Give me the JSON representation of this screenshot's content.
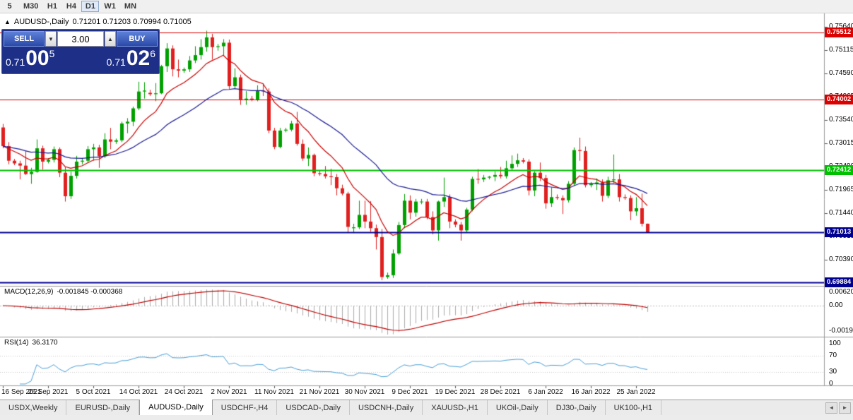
{
  "toolbar": {
    "timeframes": [
      "5",
      "M30",
      "H1",
      "H4",
      "D1",
      "W1",
      "MN"
    ],
    "active": "D1"
  },
  "chart_header": {
    "collapse_icon": "▲",
    "symbol_title": "AUDUSD-,Daily",
    "ohlc_text": "0.71201 0.71203 0.70994 0.71005"
  },
  "one_click": {
    "sell_label": "SELL",
    "buy_label": "BUY",
    "volume": "3.00",
    "volume_down_icon": "▼",
    "volume_up_icon": "▲",
    "bid": {
      "prefix": "0.71",
      "big": "00",
      "sup": "5"
    },
    "ask": {
      "prefix": "0.71",
      "big": "02",
      "sup": "6"
    }
  },
  "indicators": {
    "macd_label": "MACD(12,26,9)",
    "macd_values": "-0.001845 -0.000368",
    "macd_axis": [
      "0.006201",
      "0.00",
      "-0.001917"
    ],
    "rsi_label": "RSI(14)",
    "rsi_value": "36.3170",
    "rsi_axis": [
      "100",
      "70",
      "30",
      "0"
    ]
  },
  "tabs": {
    "items": [
      "USDX,Weekly",
      "EURUSD-,Daily",
      "AUDUSD-,Daily",
      "USDCHF-,H4",
      "USDCAD-,Daily",
      "USDCNH-,Daily",
      "XAUUSD-,H1",
      "UKOil-,Daily",
      "DJ30-,Daily",
      "UK100-,H1"
    ],
    "active_index": 2,
    "scroll_left_icon": "◄",
    "scroll_right_icon": "►"
  },
  "chart_data": {
    "type": "candlestick",
    "symbol": "AUDUSD-,Daily",
    "ohlc_current": {
      "open": 0.71201,
      "high": 0.71203,
      "low": 0.70994,
      "close": 0.71005
    },
    "colors": {
      "bull": "#00a000",
      "bear": "#e01f1f",
      "background": "#ffffff"
    },
    "price_axis": {
      "price_at_top": 0.7594,
      "price_per_pixel": 0.000159068,
      "ticks": [
        "0.75640",
        "0.75115",
        "0.74590",
        "0.74065",
        "0.73540",
        "0.73015",
        "0.72490",
        "0.71965",
        "0.71440",
        "0.70915",
        "0.70390",
        "0.69865"
      ]
    },
    "hlines": [
      {
        "label": "0.75512",
        "price": 0.75512,
        "color": "#dd0000",
        "width": 1
      },
      {
        "label": "0.74002",
        "price": 0.74002,
        "color": "#dd0000",
        "width": 1
      },
      {
        "label": "0.72412",
        "price": 0.72412,
        "color": "#00c000",
        "width": 2
      },
      {
        "label": "0.71013",
        "price": 0.71013,
        "color": "#000090",
        "width": 2
      },
      {
        "label": "0.69884",
        "price": 0.69884,
        "color": "#000090",
        "width": 2
      }
    ],
    "overlays": [
      {
        "name": "ma-fast",
        "period": 10,
        "color": "#cc0000"
      },
      {
        "name": "ma-slow",
        "period": 30,
        "color": "#1a1a96"
      }
    ],
    "macd": {
      "fast": 12,
      "slow": 26,
      "signal": 9,
      "bar_color": "#ababab",
      "signal_color": "#c00000"
    },
    "rsi": {
      "period": 14,
      "color": "#4aa0d8",
      "levels": [
        70,
        30
      ]
    },
    "date_labels": [
      {
        "i": 0,
        "t": "16 Sep 2021"
      },
      {
        "i": 8,
        "t": "26 Sep 2021"
      },
      {
        "i": 16,
        "t": "5 Oct 2021"
      },
      {
        "i": 24,
        "t": "14 Oct 2021"
      },
      {
        "i": 32,
        "t": "24 Oct 2021"
      },
      {
        "i": 40,
        "t": "2 Nov 2021"
      },
      {
        "i": 48,
        "t": "11 Nov 2021"
      },
      {
        "i": 56,
        "t": "21 Nov 2021"
      },
      {
        "i": 64,
        "t": "30 Nov 2021"
      },
      {
        "i": 72,
        "t": "9 Dec 2021"
      },
      {
        "i": 80,
        "t": "19 Dec 2021"
      },
      {
        "i": 88,
        "t": "28 Dec 2021"
      },
      {
        "i": 96,
        "t": "6 Jan 2022"
      },
      {
        "i": 104,
        "t": "16 Jan 2022"
      },
      {
        "i": 112,
        "t": "25 Jan 2022"
      }
    ],
    "candles": [
      [
        0.7337,
        0.7345,
        0.729,
        0.7295
      ],
      [
        0.7295,
        0.7304,
        0.7254,
        0.7262
      ],
      [
        0.7262,
        0.7266,
        0.7252,
        0.7256
      ],
      [
        0.7256,
        0.7262,
        0.722,
        0.7251
      ],
      [
        0.7251,
        0.7284,
        0.723,
        0.7232
      ],
      [
        0.7232,
        0.7246,
        0.721,
        0.7237
      ],
      [
        0.7237,
        0.731,
        0.7235,
        0.729
      ],
      [
        0.729,
        0.7296,
        0.7242,
        0.726
      ],
      [
        0.726,
        0.7268,
        0.7256,
        0.7264
      ],
      [
        0.7264,
        0.7294,
        0.7258,
        0.7288
      ],
      [
        0.7288,
        0.7292,
        0.7225,
        0.7235
      ],
      [
        0.7235,
        0.7248,
        0.717,
        0.7182
      ],
      [
        0.7182,
        0.7238,
        0.7176,
        0.7228
      ],
      [
        0.7228,
        0.7273,
        0.7222,
        0.726
      ],
      [
        0.726,
        0.7268,
        0.7254,
        0.7262
      ],
      [
        0.7262,
        0.7295,
        0.7258,
        0.7288
      ],
      [
        0.7288,
        0.73,
        0.7262,
        0.7292
      ],
      [
        0.7292,
        0.7298,
        0.7246,
        0.7272
      ],
      [
        0.7272,
        0.7324,
        0.7268,
        0.731
      ],
      [
        0.731,
        0.7336,
        0.7288,
        0.7305
      ],
      [
        0.7305,
        0.7312,
        0.73,
        0.7308
      ],
      [
        0.7308,
        0.735,
        0.7304,
        0.7346
      ],
      [
        0.7346,
        0.7358,
        0.7324,
        0.735
      ],
      [
        0.735,
        0.7384,
        0.734,
        0.738
      ],
      [
        0.738,
        0.744,
        0.7376,
        0.7418
      ],
      [
        0.7418,
        0.7439,
        0.7402,
        0.742
      ],
      [
        0.7415,
        0.7422,
        0.7408,
        0.7412
      ],
      [
        0.7412,
        0.7437,
        0.7396,
        0.7414
      ],
      [
        0.7414,
        0.7478,
        0.7412,
        0.7475
      ],
      [
        0.7475,
        0.7527,
        0.7462,
        0.7515
      ],
      [
        0.7515,
        0.7522,
        0.7452,
        0.7468
      ],
      [
        0.7468,
        0.749,
        0.745,
        0.7465
      ],
      [
        0.7465,
        0.7472,
        0.746,
        0.7468
      ],
      [
        0.7468,
        0.7498,
        0.7462,
        0.7488
      ],
      [
        0.7488,
        0.752,
        0.7482,
        0.75
      ],
      [
        0.75,
        0.7536,
        0.749,
        0.7518
      ],
      [
        0.7518,
        0.7555,
        0.7508,
        0.754
      ],
      [
        0.754,
        0.7548,
        0.749,
        0.7518
      ],
      [
        0.7518,
        0.7525,
        0.751,
        0.752
      ],
      [
        0.752,
        0.7536,
        0.75,
        0.7528
      ],
      [
        0.7528,
        0.7535,
        0.7424,
        0.743
      ],
      [
        0.743,
        0.747,
        0.7425,
        0.745
      ],
      [
        0.745,
        0.7456,
        0.7388,
        0.74
      ],
      [
        0.74,
        0.7419,
        0.7388,
        0.7402
      ],
      [
        0.7402,
        0.7408,
        0.7396,
        0.74
      ],
      [
        0.74,
        0.7432,
        0.7396,
        0.742
      ],
      [
        0.742,
        0.7436,
        0.7408,
        0.7418
      ],
      [
        0.7418,
        0.7425,
        0.7324,
        0.733
      ],
      [
        0.733,
        0.7336,
        0.7288,
        0.7293
      ],
      [
        0.7293,
        0.7336,
        0.729,
        0.733
      ],
      [
        0.733,
        0.7336,
        0.7326,
        0.7332
      ],
      [
        0.7332,
        0.7352,
        0.7328,
        0.7346
      ],
      [
        0.7346,
        0.7372,
        0.7296,
        0.73
      ],
      [
        0.73,
        0.731,
        0.7262,
        0.7267
      ],
      [
        0.7267,
        0.7292,
        0.725,
        0.7275
      ],
      [
        0.7275,
        0.7278,
        0.7227,
        0.7234
      ],
      [
        0.7234,
        0.724,
        0.7228,
        0.7232
      ],
      [
        0.7232,
        0.725,
        0.7222,
        0.7227
      ],
      [
        0.7227,
        0.7244,
        0.7207,
        0.7225
      ],
      [
        0.7225,
        0.7232,
        0.7184,
        0.72
      ],
      [
        0.72,
        0.7208,
        0.7184,
        0.7188
      ],
      [
        0.7188,
        0.7192,
        0.71,
        0.7113
      ],
      [
        0.711,
        0.712,
        0.71,
        0.7112
      ],
      [
        0.7112,
        0.7172,
        0.7108,
        0.714
      ],
      [
        0.714,
        0.7172,
        0.711,
        0.7125
      ],
      [
        0.7125,
        0.7171,
        0.7102,
        0.711
      ],
      [
        0.711,
        0.7118,
        0.7062,
        0.709
      ],
      [
        0.709,
        0.7108,
        0.6993,
        0.7
      ],
      [
        0.7,
        0.701,
        0.6996,
        0.7004
      ],
      [
        0.7004,
        0.7062,
        0.6998,
        0.7053
      ],
      [
        0.7053,
        0.7124,
        0.705,
        0.7117
      ],
      [
        0.7117,
        0.7187,
        0.711,
        0.7172
      ],
      [
        0.7172,
        0.7184,
        0.713,
        0.7145
      ],
      [
        0.7145,
        0.7176,
        0.7136,
        0.717
      ],
      [
        0.717,
        0.7176,
        0.7164,
        0.717
      ],
      [
        0.717,
        0.7176,
        0.713,
        0.7135
      ],
      [
        0.7135,
        0.7148,
        0.7096,
        0.7105
      ],
      [
        0.7105,
        0.7172,
        0.7082,
        0.717
      ],
      [
        0.717,
        0.7224,
        0.7158,
        0.718
      ],
      [
        0.718,
        0.7186,
        0.711,
        0.7125
      ],
      [
        0.7125,
        0.713,
        0.7112,
        0.7118
      ],
      [
        0.7118,
        0.7124,
        0.7082,
        0.7105
      ],
      [
        0.7105,
        0.7156,
        0.71,
        0.7152
      ],
      [
        0.7152,
        0.7226,
        0.7148,
        0.7221
      ],
      [
        0.7221,
        0.7243,
        0.721,
        0.722
      ],
      [
        0.722,
        0.723,
        0.7214,
        0.7224
      ],
      [
        0.7224,
        0.7228,
        0.722,
        0.7226
      ],
      [
        0.7226,
        0.7238,
        0.7216,
        0.723
      ],
      [
        0.723,
        0.7248,
        0.7222,
        0.7227
      ],
      [
        0.7227,
        0.7262,
        0.7222,
        0.7245
      ],
      [
        0.7245,
        0.7274,
        0.724,
        0.7255
      ],
      [
        0.7255,
        0.7278,
        0.7248,
        0.7263
      ],
      [
        0.7263,
        0.7268,
        0.7256,
        0.726
      ],
      [
        0.726,
        0.7265,
        0.7184,
        0.7195
      ],
      [
        0.7195,
        0.7238,
        0.7182,
        0.7235
      ],
      [
        0.7235,
        0.7258,
        0.7216,
        0.7223
      ],
      [
        0.7223,
        0.723,
        0.7154,
        0.7166
      ],
      [
        0.7166,
        0.7202,
        0.7158,
        0.718
      ],
      [
        0.718,
        0.7186,
        0.7174,
        0.7178
      ],
      [
        0.7178,
        0.7184,
        0.7142,
        0.7173
      ],
      [
        0.7173,
        0.7216,
        0.7168,
        0.721
      ],
      [
        0.721,
        0.7292,
        0.7206,
        0.7286
      ],
      [
        0.7286,
        0.7314,
        0.7262,
        0.7284
      ],
      [
        0.7284,
        0.7294,
        0.7202,
        0.7207
      ],
      [
        0.7207,
        0.7214,
        0.7202,
        0.721
      ],
      [
        0.721,
        0.7222,
        0.7196,
        0.7213
      ],
      [
        0.7213,
        0.722,
        0.717,
        0.7183
      ],
      [
        0.7183,
        0.7226,
        0.7178,
        0.7218
      ],
      [
        0.7218,
        0.7276,
        0.7212,
        0.722
      ],
      [
        0.722,
        0.7232,
        0.717,
        0.718
      ],
      [
        0.718,
        0.7186,
        0.7174,
        0.7178
      ],
      [
        0.7178,
        0.7184,
        0.7128,
        0.7148
      ],
      [
        0.7148,
        0.718,
        0.7138,
        0.7155
      ],
      [
        0.7155,
        0.7188,
        0.7114,
        0.712
      ],
      [
        0.71201,
        0.71203,
        0.70994,
        0.71005
      ]
    ]
  }
}
